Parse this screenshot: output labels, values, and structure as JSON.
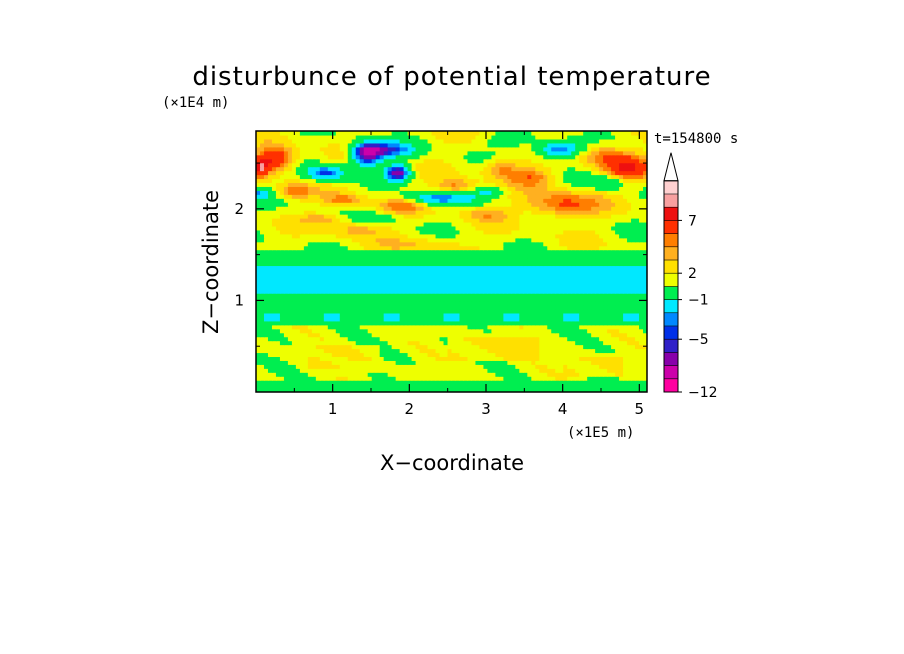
{
  "chart_data": {
    "type": "heatmap",
    "title": "disturbunce of potential temperature",
    "xlabel": "X−coordinate",
    "ylabel": "Z−coordinate",
    "x_unit": "(×1E5 m)",
    "y_unit": "(×1E4 m)",
    "time_label": "t=154800 s",
    "xlim": [
      0,
      5.1
    ],
    "ylim": [
      0,
      2.85
    ],
    "xticks": [
      {
        "value": 1,
        "label": "1"
      },
      {
        "value": 2,
        "label": "2"
      },
      {
        "value": 3,
        "label": "3"
      },
      {
        "value": 4,
        "label": "4"
      },
      {
        "value": 5,
        "label": "5"
      }
    ],
    "yticks": [
      {
        "value": 1,
        "label": "1"
      },
      {
        "value": 2,
        "label": "2"
      }
    ],
    "colorbar": {
      "levels": [
        -12,
        -10,
        -8,
        -6,
        -5,
        -4,
        -3,
        -1,
        1,
        2,
        3,
        4,
        5,
        7,
        8,
        9
      ],
      "colors": [
        "#ff00a0",
        "#cc00aa",
        "#8800aa",
        "#3020c8",
        "#0030e8",
        "#0088ff",
        "#00e8ff",
        "#00ee50",
        "#eeff00",
        "#ffe000",
        "#ffb020",
        "#ff7e00",
        "#ff3000",
        "#ee1010",
        "#f8a0a0",
        "#ffd0d0"
      ],
      "labels": [
        {
          "value": -12,
          "label": "−12"
        },
        {
          "value": -5,
          "label": "−5"
        },
        {
          "value": -1,
          "label": "−1"
        },
        {
          "value": 2,
          "label": "2"
        },
        {
          "value": 7,
          "label": "7"
        }
      ]
    },
    "grid": false,
    "legend": "colorbar-right"
  }
}
